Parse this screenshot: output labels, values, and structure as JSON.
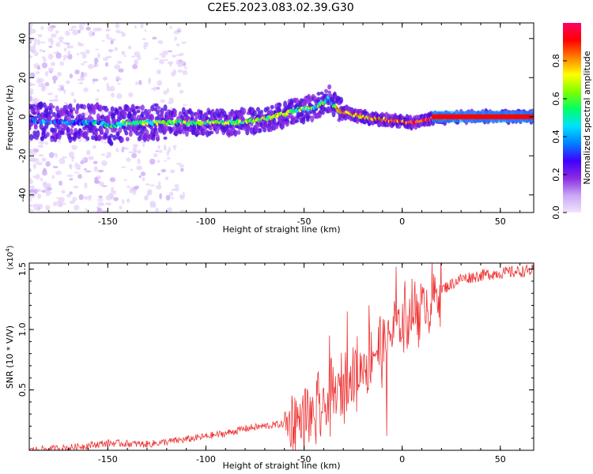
{
  "title": "C2E5.2023.083.02.39.G30",
  "chart_data": [
    {
      "type": "heatmap",
      "xlabel": "Height of straight line (km)",
      "ylabel": "Frequency (Hz)",
      "xlim": [
        -190,
        67
      ],
      "ylim": [
        -49,
        48
      ],
      "x_ticks": [
        -150,
        -100,
        -50,
        0,
        50
      ],
      "y_ticks": [
        -40,
        -20,
        0,
        20,
        40
      ],
      "grid": false,
      "colorbar": {
        "label": "Normalized spectral amplitude",
        "range": [
          0,
          1
        ],
        "ticks": [
          "0.0",
          "0.2",
          "0.4",
          "0.6",
          "0.8"
        ],
        "tick_values": [
          0.0,
          0.2,
          0.4,
          0.6,
          0.8
        ],
        "colors": [
          "#f2e4fb",
          "#c9a6f5",
          "#8a2be2",
          "#3f00ff",
          "#0080ff",
          "#00e0ff",
          "#00ff66",
          "#7fff00",
          "#ffff00",
          "#ff8000",
          "#ff0000",
          "#ff0066"
        ]
      },
      "ridge": {
        "x": [
          -190,
          -170,
          -155,
          -148,
          -140,
          -120,
          -100,
          -85,
          -75,
          -65,
          -55,
          -45,
          -40,
          -37,
          -35,
          -32,
          -25,
          -15,
          -5,
          5,
          15,
          30,
          50,
          67
        ],
        "y": [
          -2,
          -3,
          -3,
          -5,
          -3,
          -3,
          -3,
          -3,
          -2,
          0,
          3,
          5,
          7,
          10,
          6,
          3,
          1,
          -1,
          -2,
          -3,
          -1,
          0,
          0,
          0
        ],
        "amplitude": [
          0.3,
          0.35,
          0.4,
          0.5,
          0.55,
          0.6,
          0.62,
          0.62,
          0.6,
          0.62,
          0.58,
          0.55,
          0.5,
          0.4,
          0.55,
          0.8,
          0.75,
          0.8,
          0.85,
          0.9,
          0.95,
          1.0,
          1.0,
          1.0
        ]
      }
    },
    {
      "type": "line",
      "xlabel": "Height of straight line (km)",
      "ylabel": "SNR (10 * V/V)",
      "y_scale_label": "(x10",
      "y_scale_exponent": "4",
      "y_scale_suffix": ")",
      "xlim": [
        -190,
        67
      ],
      "ylim": [
        0,
        1.55
      ],
      "x_ticks": [
        -150,
        -100,
        -50,
        0,
        50
      ],
      "y_ticks": [
        "0.5",
        "1.0",
        "1.5"
      ],
      "y_tick_values": [
        0.5,
        1.0,
        1.5
      ],
      "grid": false,
      "series": [
        {
          "color": "#ee3333",
          "trend_x": [
            -190,
            -170,
            -150,
            -130,
            -110,
            -90,
            -80,
            -70,
            -60,
            -50,
            -45,
            -40,
            -35,
            -30,
            -25,
            -20,
            -15,
            -10,
            -5,
            0,
            5,
            10,
            20,
            30,
            45,
            67
          ],
          "trend_y": [
            0.0,
            0.02,
            0.06,
            0.05,
            0.09,
            0.14,
            0.18,
            0.2,
            0.22,
            0.26,
            0.3,
            0.34,
            0.44,
            0.55,
            0.6,
            0.7,
            0.82,
            0.84,
            0.98,
            1.05,
            1.14,
            1.2,
            1.33,
            1.42,
            1.46,
            1.49
          ],
          "spikes": [
            [
              -37,
              0.95
            ],
            [
              -28,
              1.15
            ],
            [
              -17,
              1.2
            ],
            [
              -3,
              1.52
            ],
            [
              5,
              1.42
            ],
            [
              -8,
              0.12
            ],
            [
              -44,
              0.05
            ]
          ]
        }
      ]
    }
  ]
}
